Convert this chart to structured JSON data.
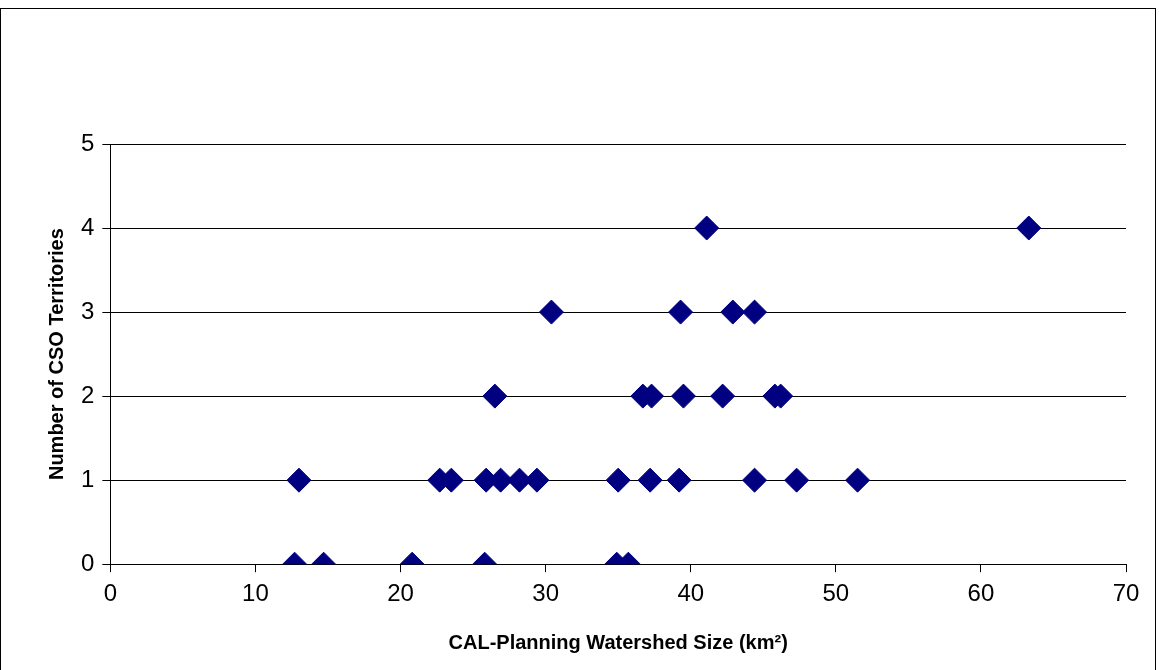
{
  "chart_data": {
    "type": "scatter",
    "xlabel": "CAL-Planning Watershed Size (km²)",
    "ylabel": "Number of CSO Territories",
    "series": [
      {
        "color": "#000080",
        "x": [
          12.7,
          14.7,
          20.8,
          25.8,
          34.9,
          35.7,
          13.0,
          22.7,
          23.5,
          25.9,
          26.9,
          28.2,
          29.4,
          35.0,
          37.2,
          39.2,
          44.4,
          47.3,
          51.5,
          26.5,
          36.7,
          37.3,
          39.5,
          42.2,
          45.8,
          46.2,
          30.4,
          39.3,
          42.9,
          44.4,
          41.1,
          63.3
        ],
        "values": [
          0,
          0,
          0,
          0,
          0,
          0,
          1,
          1,
          1,
          1,
          1,
          1,
          1,
          1,
          1,
          1,
          1,
          1,
          1,
          2,
          2,
          2,
          2,
          2,
          2,
          2,
          3,
          3,
          3,
          3,
          4,
          4
        ]
      }
    ],
    "xlim": [
      0,
      70
    ],
    "xticks": [
      0,
      10,
      20,
      30,
      40,
      50,
      60,
      70
    ],
    "ylim": [
      0,
      5
    ],
    "yticks": [
      0,
      1,
      2,
      3,
      4,
      5
    ],
    "grid": "y",
    "legend": false,
    "marker": "diamond"
  }
}
